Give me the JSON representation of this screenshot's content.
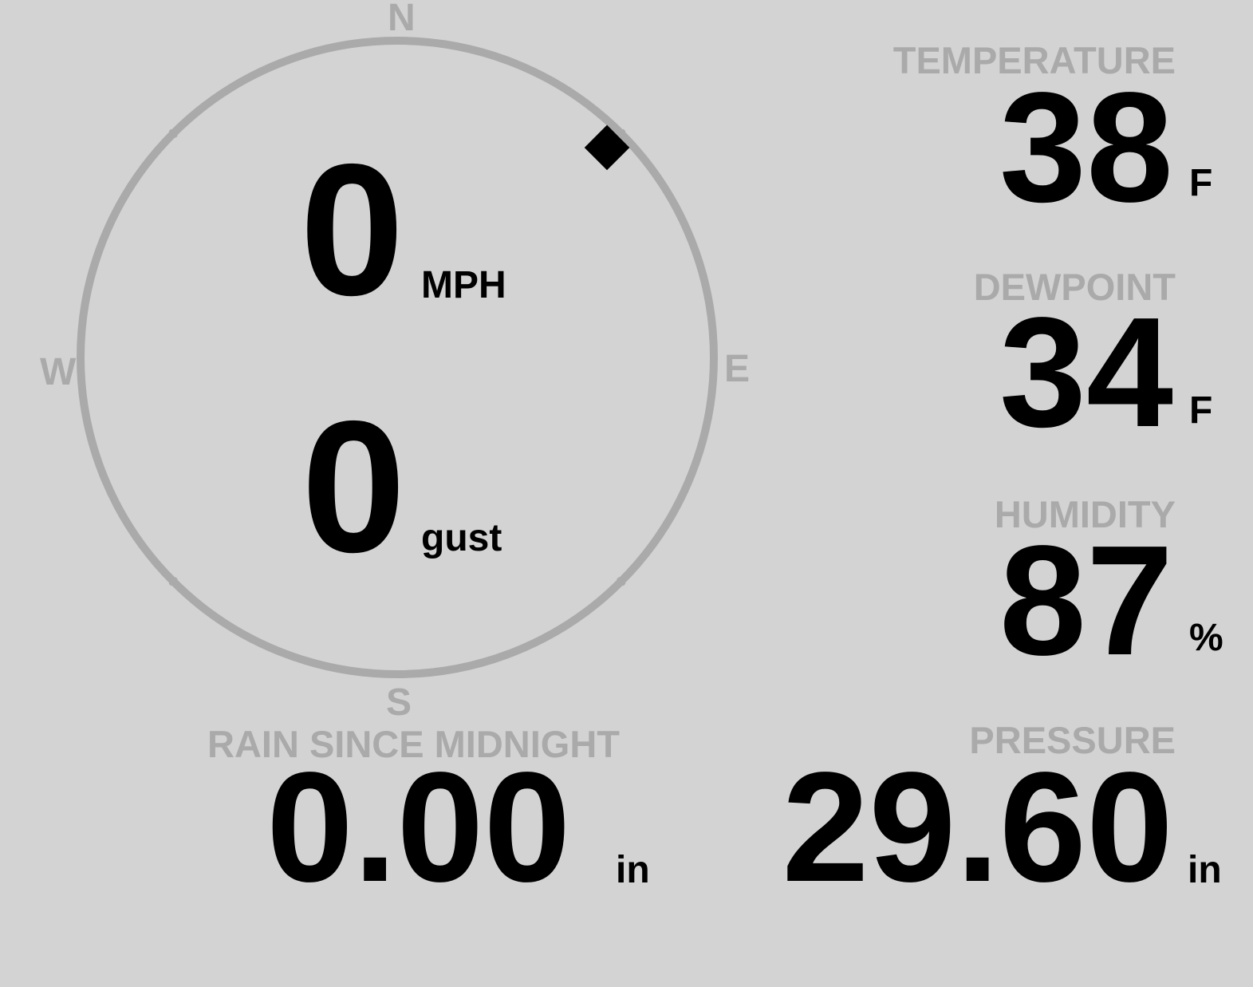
{
  "wind": {
    "compass": {
      "north": "N",
      "east": "E",
      "south": "S",
      "west": "W"
    },
    "direction_degrees": 45,
    "speed": "0",
    "speed_unit": "MPH",
    "gust": "0",
    "gust_label": "gust"
  },
  "temperature": {
    "label": "TEMPERATURE",
    "value": "38",
    "unit": "F"
  },
  "dewpoint": {
    "label": "DEWPOINT",
    "value": "34",
    "unit": "F"
  },
  "humidity": {
    "label": "HUMIDITY",
    "value": "87",
    "unit": "%"
  },
  "rain": {
    "label": "RAIN SINCE MIDNIGHT",
    "value": "0.00",
    "unit": "in"
  },
  "pressure": {
    "label": "PRESSURE",
    "value": "29.60",
    "unit": "in"
  },
  "colors": {
    "background": "#d3d3d3",
    "label": "#aaaaaa",
    "value": "#000000"
  }
}
